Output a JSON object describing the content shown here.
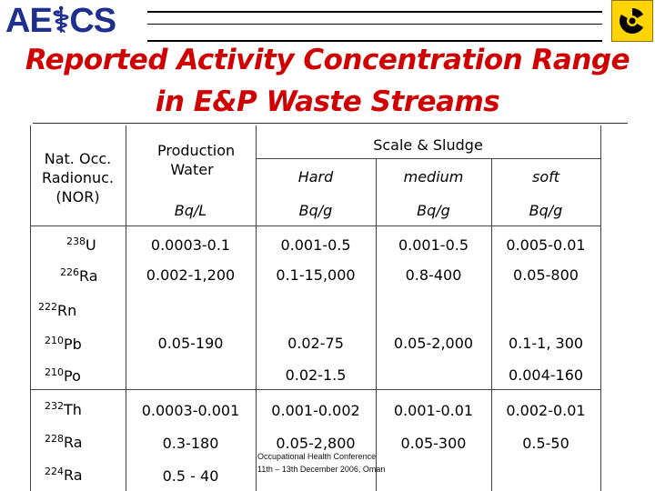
{
  "logo": {
    "text": "AE⚕CS"
  },
  "title": {
    "line1": "Reported Activity Concentration Range",
    "line2": "in E&P Waste Streams"
  },
  "headers": {
    "col0": "Nat. Occ. Radionuc. (NOR)",
    "col1": "Production Water",
    "col1_unit": "Bq/L",
    "group": "Scale & Sludge",
    "hard": "Hard",
    "medium": "medium",
    "soft": "soft",
    "hard_unit": "Bq/g",
    "medium_unit": "Bq/g",
    "soft_unit": "Bq/g"
  },
  "rows": [
    {
      "mass": "238",
      "el": "U",
      "water": "0.0003-0.1",
      "hard": "0.001-0.5",
      "medium": "0.001-0.5",
      "soft": "0.005-0.01"
    },
    {
      "mass": "226",
      "el": "Ra",
      "water": "0.002-1,200",
      "hard": "0.1-15,000",
      "medium": "0.8-400",
      "soft": "0.05-800"
    },
    {
      "mass": "222",
      "el": "Rn",
      "water": "",
      "hard": "",
      "medium": "",
      "soft": ""
    },
    {
      "mass": "210",
      "el": "Pb",
      "water": "0.05-190",
      "hard": "0.02-75",
      "medium": "0.05-2,000",
      "soft": "0.1-1, 300"
    },
    {
      "mass": "210",
      "el": "Po",
      "water": "",
      "hard": "0.02-1.5",
      "medium": "",
      "soft": "0.004-160"
    },
    {
      "mass": "232",
      "el": "Th",
      "water": "0.0003-0.001",
      "hard": "0.001-0.002",
      "medium": "0.001-0.01",
      "soft": "0.002-0.01"
    },
    {
      "mass": "228",
      "el": "Ra",
      "water": "0.3-180",
      "hard": "0.05-2,800",
      "medium": "0.05-300",
      "soft": "0.5-50"
    },
    {
      "mass": "224",
      "el": "Ra",
      "water": "0.5 - 40",
      "hard": "",
      "medium": "",
      "soft": ""
    }
  ],
  "footnote": {
    "line1": "Occupational Health Conference",
    "line2": "11th – 13th December 2006, Oman"
  },
  "colors": {
    "title": "#d10000",
    "logo": "#1f2f8f",
    "radiation": "#ffd400"
  },
  "icons": [
    "radiation-icon",
    "caduceus-icon"
  ]
}
